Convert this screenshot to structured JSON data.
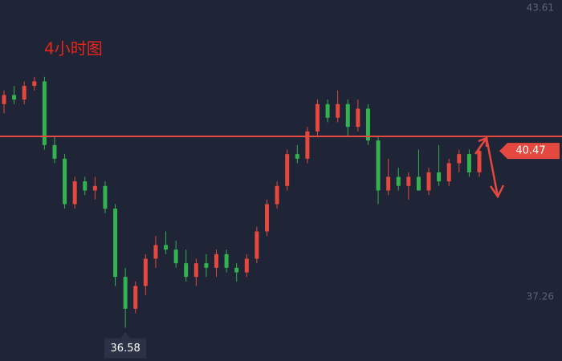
{
  "chart_data": {
    "type": "candlestick",
    "title": "4小时图",
    "open": [
      41.5,
      41.7,
      41.6,
      41.9,
      42.0,
      40.6,
      40.3,
      39.3,
      39.8,
      39.6,
      39.7,
      39.2,
      37.7,
      37.0,
      37.5,
      38.1,
      38.4,
      38.3,
      38.0,
      37.7,
      38.0,
      37.9,
      38.2,
      37.9,
      37.8,
      38.1,
      38.7,
      39.3,
      39.7,
      40.4,
      40.3,
      40.9,
      41.5,
      41.2,
      41.5,
      41.0,
      41.4,
      40.7,
      39.6,
      39.9,
      39.7,
      39.9,
      39.6,
      40.0,
      39.8,
      40.2,
      40.4,
      40.0
    ],
    "high": [
      41.8,
      41.9,
      42.0,
      42.1,
      42.1,
      40.8,
      40.4,
      39.9,
      39.9,
      39.9,
      39.8,
      39.3,
      37.9,
      37.6,
      38.2,
      38.6,
      38.7,
      38.5,
      38.3,
      38.1,
      38.2,
      38.3,
      38.3,
      38.0,
      38.2,
      38.8,
      39.4,
      39.8,
      40.5,
      40.6,
      41.0,
      41.6,
      41.6,
      41.8,
      41.6,
      41.6,
      41.5,
      40.8,
      40.3,
      40.1,
      40.0,
      40.5,
      40.1,
      40.6,
      40.3,
      40.5,
      40.5,
      40.5
    ],
    "low": [
      41.3,
      41.5,
      41.5,
      41.8,
      40.5,
      40.2,
      39.2,
      39.2,
      39.5,
      39.4,
      39.1,
      37.5,
      36.58,
      36.9,
      37.3,
      37.9,
      38.2,
      37.9,
      37.6,
      37.5,
      37.7,
      37.7,
      37.8,
      37.6,
      37.7,
      38.0,
      38.6,
      39.2,
      39.6,
      40.2,
      40.2,
      40.8,
      41.1,
      41.1,
      40.8,
      40.9,
      40.6,
      39.3,
      39.5,
      39.6,
      39.4,
      39.6,
      39.5,
      39.7,
      39.7,
      40.0,
      39.9,
      39.9
    ],
    "close": [
      41.7,
      41.6,
      41.9,
      42.0,
      40.6,
      40.3,
      39.3,
      39.8,
      39.6,
      39.7,
      39.2,
      37.7,
      37.0,
      37.5,
      38.1,
      38.4,
      38.3,
      38.0,
      37.7,
      38.0,
      37.9,
      38.2,
      37.9,
      37.8,
      38.1,
      38.7,
      39.3,
      39.7,
      40.4,
      40.3,
      40.9,
      41.5,
      41.2,
      41.5,
      41.0,
      41.4,
      40.7,
      39.6,
      39.9,
      39.7,
      39.9,
      39.6,
      40.0,
      39.8,
      40.2,
      40.4,
      40.0,
      40.47
    ],
    "up_color": "#e5483f",
    "down_color": "#33b34f",
    "ylim": [
      35.85,
      43.79
    ],
    "yticks": [
      37.26,
      43.61
    ],
    "hline": 40.79,
    "hline_color": "#e5483f",
    "last_price": 40.47,
    "low_price": 36.58
  }
}
